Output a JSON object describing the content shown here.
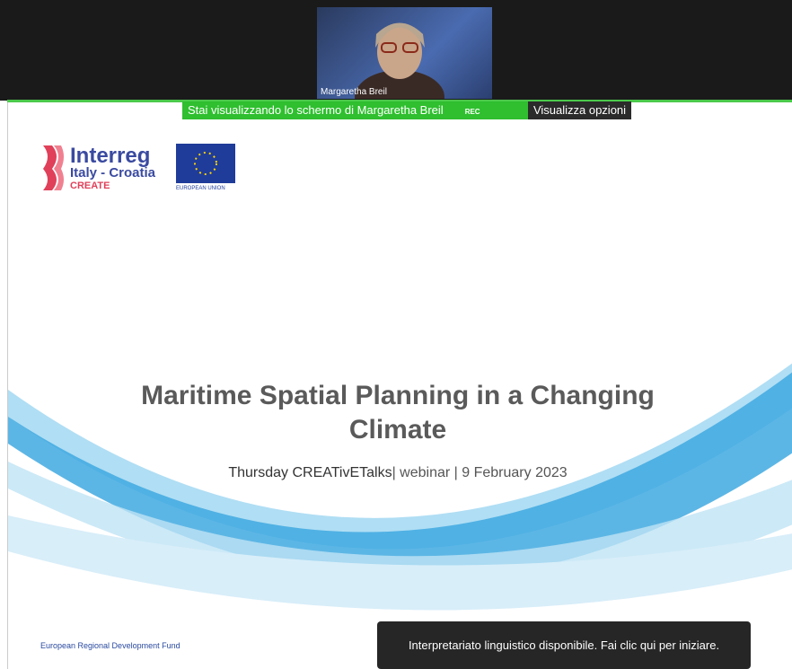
{
  "meeting": {
    "participant_name": "Margaretha Breil",
    "share_banner": "Stai visualizzando lo schermo di Margaretha Breil",
    "rec": "REC",
    "view_options": "Visualizza opzioni",
    "interpretation_toast": "Interpretariato linguistico disponibile. Fai clic qui per iniziare."
  },
  "slide": {
    "logo": {
      "brand": "Interreg",
      "program": "Italy - Croatia",
      "project": "CREATE",
      "eu_label": "EUROPEAN UNION"
    },
    "title": "Maritime Spatial Planning in a Changing Climate",
    "subtitle_bold": "Thursday CREATivETalks",
    "subtitle_rest": "| webinar | 9 February 2023",
    "footer": "European Regional Development Fund"
  }
}
